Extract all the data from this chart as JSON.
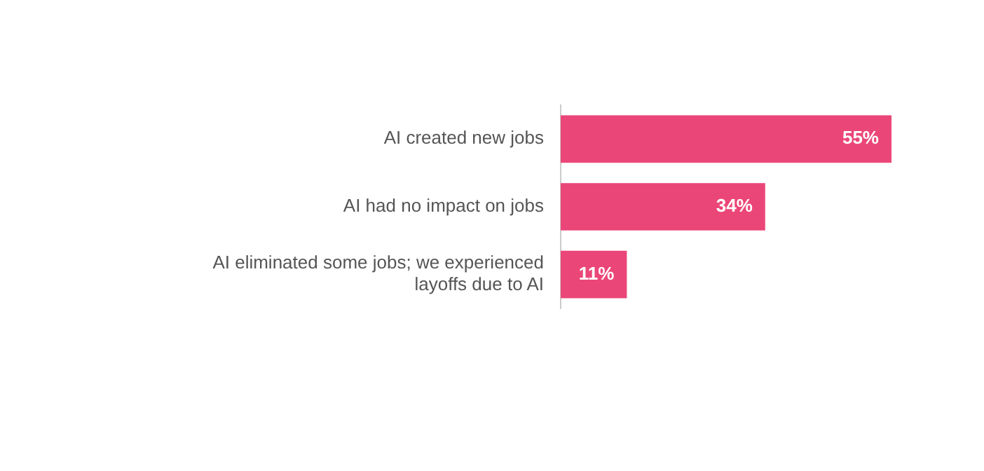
{
  "chart_data": {
    "type": "bar",
    "orientation": "horizontal",
    "categories": [
      "AI created new jobs",
      "AI had no impact on jobs",
      "AI eliminated some jobs; we experienced layoffs due to AI"
    ],
    "values": [
      55,
      34,
      11
    ],
    "color": "#eb4678",
    "value_labels": [
      "55%",
      "34%",
      "11%"
    ],
    "legend": false
  }
}
